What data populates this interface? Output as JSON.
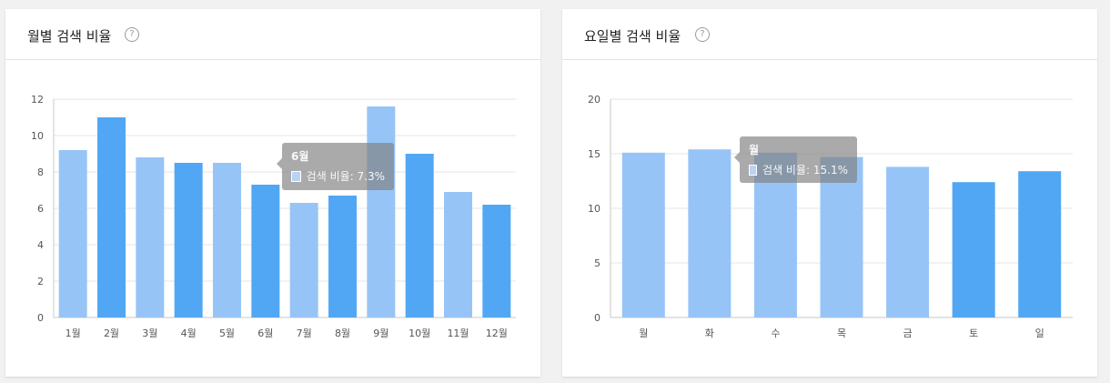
{
  "colors": {
    "light": "#97c4f6",
    "dark": "#51a7f4",
    "grid": "#e6e6e6",
    "axis": "#c8c8c8",
    "tick_text": "#555555"
  },
  "monthly": {
    "title": "월별 검색 비율",
    "help_icon": "question-circle-icon",
    "help_glyph": "?",
    "tooltip": {
      "title": "6월",
      "label": "검색 비율: 7.3%"
    }
  },
  "weekday": {
    "title": "요일별 검색 비율",
    "help_icon": "question-circle-icon",
    "help_glyph": "?",
    "tooltip": {
      "title": "월",
      "label": "검색 비율: 15.1%"
    }
  },
  "chart_data": [
    {
      "type": "bar",
      "title": "월별 검색 비율",
      "categories": [
        "1월",
        "2월",
        "3월",
        "4월",
        "5월",
        "6월",
        "7월",
        "8월",
        "9월",
        "10월",
        "11월",
        "12월"
      ],
      "values": [
        9.2,
        11.0,
        8.8,
        8.5,
        8.5,
        7.3,
        6.3,
        6.7,
        11.6,
        9.0,
        6.9,
        6.2
      ],
      "colors": [
        "light",
        "dark",
        "light",
        "dark",
        "light",
        "dark",
        "light",
        "dark",
        "light",
        "dark",
        "light",
        "dark"
      ],
      "yticks": [
        0,
        2,
        4,
        6,
        8,
        10,
        12
      ],
      "ylim": [
        0,
        12
      ],
      "grid": true
    },
    {
      "type": "bar",
      "title": "요일별 검색 비율",
      "categories": [
        "월",
        "화",
        "수",
        "목",
        "금",
        "토",
        "일"
      ],
      "values": [
        15.1,
        15.4,
        15.1,
        14.7,
        13.8,
        12.4,
        13.4
      ],
      "colors": [
        "light",
        "light",
        "light",
        "light",
        "light",
        "dark",
        "dark"
      ],
      "yticks": [
        0,
        5,
        10,
        15,
        20
      ],
      "ylim": [
        0,
        20
      ],
      "grid": true
    }
  ]
}
